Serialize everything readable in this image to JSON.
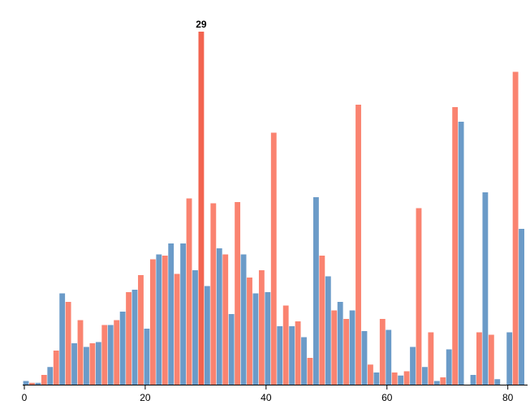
{
  "chart_data": {
    "type": "bar",
    "title": "",
    "xlabel": "",
    "ylabel": "",
    "xlim": [
      0,
      83
    ],
    "ylim": [
      0,
      29
    ],
    "grid": false,
    "x_ticks": [
      0,
      20,
      40,
      60,
      80
    ],
    "highlight": {
      "series": 1,
      "x": 29,
      "label": "29"
    },
    "bar_group_width": 2,
    "series": [
      {
        "color": "#6b9bc8",
        "points": [
          [
            0,
            0.3
          ],
          [
            2,
            0.15
          ],
          [
            4,
            1.45
          ],
          [
            6,
            7.5
          ],
          [
            8,
            3.4
          ],
          [
            10,
            3.1
          ],
          [
            12,
            3.5
          ],
          [
            14,
            4.9
          ],
          [
            16,
            6.0
          ],
          [
            18,
            7.8
          ],
          [
            20,
            4.6
          ],
          [
            22,
            10.7
          ],
          [
            24,
            11.6
          ],
          [
            26,
            11.6
          ],
          [
            28,
            9.4
          ],
          [
            30,
            8.1
          ],
          [
            32,
            11.2
          ],
          [
            34,
            5.8
          ],
          [
            36,
            10.7
          ],
          [
            38,
            7.5
          ],
          [
            40,
            7.6
          ],
          [
            42,
            4.8
          ],
          [
            44,
            4.8
          ],
          [
            46,
            3.9
          ],
          [
            48,
            15.4
          ],
          [
            50,
            8.9
          ],
          [
            52,
            6.8
          ],
          [
            54,
            6.1
          ],
          [
            56,
            4.4
          ],
          [
            58,
            1.0
          ],
          [
            60,
            4.5
          ],
          [
            62,
            0.75
          ],
          [
            64,
            3.1
          ],
          [
            66,
            1.45
          ],
          [
            68,
            0.3
          ],
          [
            70,
            2.9
          ],
          [
            72,
            21.6
          ],
          [
            74,
            0.8
          ],
          [
            76,
            15.8
          ],
          [
            78,
            0.45
          ],
          [
            80,
            4.3
          ],
          [
            82,
            12.8
          ]
        ]
      },
      {
        "color": "#fa8370",
        "points": [
          [
            1,
            0.15
          ],
          [
            3,
            0.8
          ],
          [
            5,
            2.8
          ],
          [
            7,
            6.8
          ],
          [
            9,
            5.3
          ],
          [
            11,
            3.4
          ],
          [
            13,
            4.9
          ],
          [
            15,
            5.3
          ],
          [
            17,
            7.6
          ],
          [
            19,
            9.0
          ],
          [
            21,
            10.3
          ],
          [
            23,
            10.6
          ],
          [
            25,
            9.1
          ],
          [
            27,
            15.3
          ],
          [
            29,
            29.0
          ],
          [
            31,
            14.9
          ],
          [
            33,
            10.7
          ],
          [
            35,
            15.0
          ],
          [
            37,
            8.8
          ],
          [
            39,
            9.4
          ],
          [
            41,
            20.7
          ],
          [
            43,
            6.5
          ],
          [
            45,
            5.2
          ],
          [
            47,
            2.2
          ],
          [
            49,
            10.6
          ],
          [
            51,
            6.1
          ],
          [
            53,
            5.4
          ],
          [
            55,
            23.0
          ],
          [
            57,
            1.65
          ],
          [
            59,
            5.4
          ],
          [
            61,
            1.0
          ],
          [
            63,
            1.1
          ],
          [
            65,
            14.5
          ],
          [
            67,
            4.3
          ],
          [
            69,
            0.6
          ],
          [
            71,
            22.8
          ],
          [
            73,
            0
          ],
          [
            75,
            4.3
          ],
          [
            77,
            4.1
          ],
          [
            79,
            0
          ],
          [
            81,
            25.7
          ],
          [
            83,
            0
          ]
        ]
      }
    ]
  },
  "colors": {
    "series_blue": "#6b9bc8",
    "series_salmon": "#fa8370",
    "highlight_bar": "#f26450",
    "axis": "#000000"
  }
}
